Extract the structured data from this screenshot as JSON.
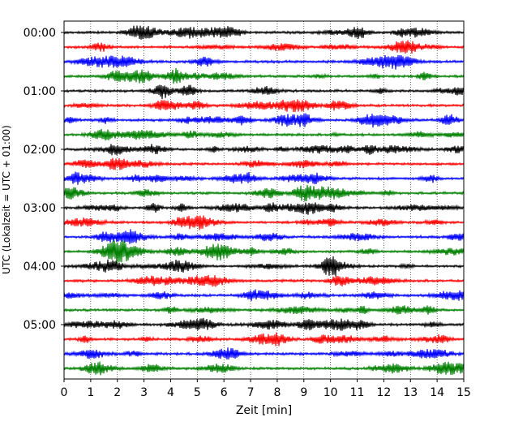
{
  "chart_data": {
    "type": "line",
    "xlabel": "Zeit  [min]",
    "ylabel": "UTC (Lokalzeit = UTC + 01:00)",
    "xlim": [
      0,
      15
    ],
    "x_ticks": [
      "0",
      "1",
      "2",
      "3",
      "4",
      "5",
      "6",
      "7",
      "8",
      "9",
      "10",
      "11",
      "12",
      "13",
      "14",
      "15"
    ],
    "y_ticks": [
      "00:00",
      "01:00",
      "02:00",
      "03:00",
      "04:00",
      "05:00"
    ],
    "trace_count": 24,
    "trace_interval_minutes": 15,
    "trace_colors": [
      "#000000",
      "#ff0000",
      "#0000ff",
      "#008000"
    ],
    "grid": "vertical dotted at each minute"
  }
}
